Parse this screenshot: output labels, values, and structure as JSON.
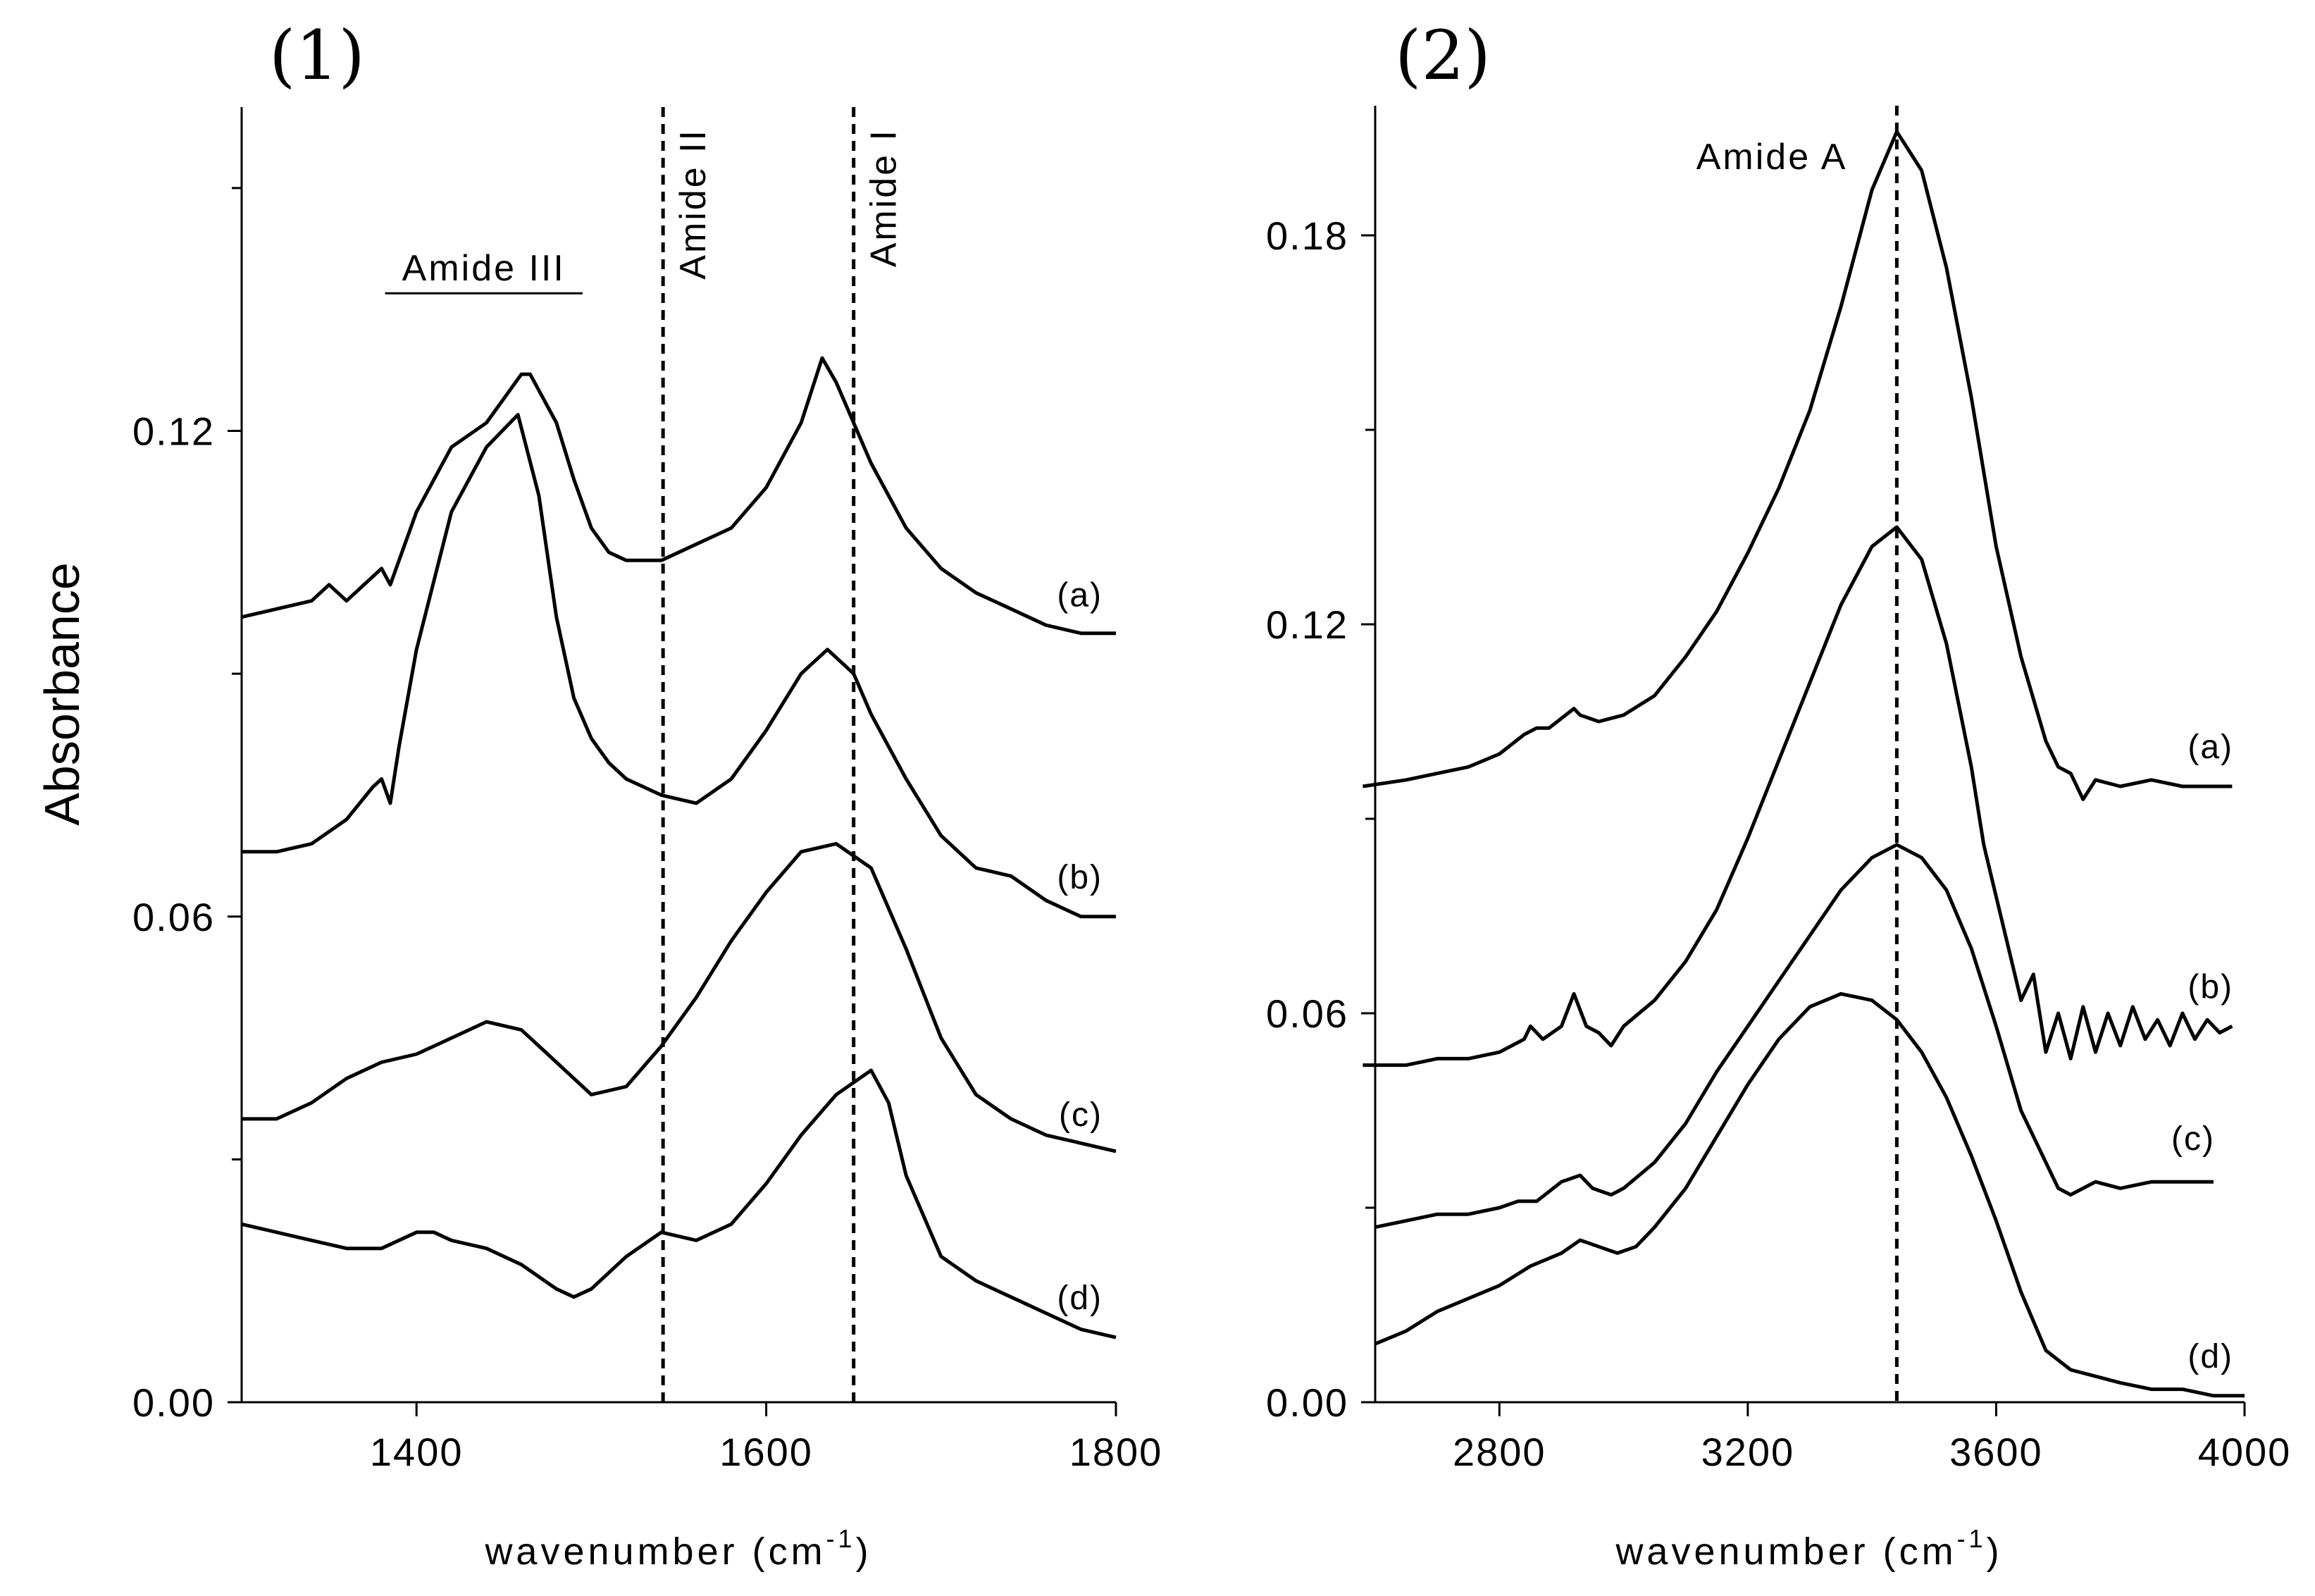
{
  "chart_data": [
    {
      "type": "line",
      "panel": "(1)",
      "ylabel": "Absorbance",
      "xlabel": "wavenumber (cm",
      "xlabel_sup": "-1",
      "xlabel_close": ")",
      "xlim": [
        1300,
        1800
      ],
      "ylim": [
        0,
        0.16
      ],
      "xticks": [
        1400,
        1600,
        1800
      ],
      "xtick_labels": [
        "1400",
        "1600",
        "1800"
      ],
      "yticks": [
        0.0,
        0.06,
        0.12
      ],
      "ytick_labels": [
        "0.00",
        "0.06",
        "0.12"
      ],
      "minor_yticks": [
        0.03,
        0.09,
        0.15
      ],
      "reference_lines": [
        {
          "x": 1541,
          "label": "Amide II"
        },
        {
          "x": 1650,
          "label": "Amide I"
        }
      ],
      "bracket_annotation": {
        "label": "Amide III",
        "x_from": 1382,
        "x_to": 1495,
        "y": 0.137
      },
      "series": [
        {
          "name": "(a)",
          "x": [
            1300,
            1320,
            1340,
            1350,
            1360,
            1380,
            1385,
            1400,
            1410,
            1420,
            1440,
            1460,
            1465,
            1480,
            1490,
            1500,
            1510,
            1520,
            1540,
            1560,
            1580,
            1600,
            1620,
            1632,
            1640,
            1660,
            1680,
            1700,
            1720,
            1740,
            1760,
            1780,
            1800
          ],
          "y": [
            0.097,
            0.098,
            0.099,
            0.101,
            0.099,
            0.103,
            0.101,
            0.11,
            0.114,
            0.118,
            0.121,
            0.127,
            0.127,
            0.121,
            0.114,
            0.108,
            0.105,
            0.104,
            0.104,
            0.106,
            0.108,
            0.113,
            0.121,
            0.129,
            0.126,
            0.116,
            0.108,
            0.103,
            0.1,
            0.098,
            0.096,
            0.095,
            0.095
          ]
        },
        {
          "name": "(b)",
          "x": [
            1300,
            1320,
            1340,
            1360,
            1375,
            1380,
            1385,
            1390,
            1400,
            1420,
            1440,
            1458,
            1470,
            1480,
            1490,
            1500,
            1510,
            1520,
            1540,
            1560,
            1580,
            1600,
            1620,
            1635,
            1650,
            1660,
            1680,
            1700,
            1720,
            1740,
            1760,
            1780,
            1800
          ],
          "y": [
            0.068,
            0.068,
            0.069,
            0.072,
            0.076,
            0.077,
            0.074,
            0.081,
            0.093,
            0.11,
            0.118,
            0.122,
            0.112,
            0.097,
            0.087,
            0.082,
            0.079,
            0.077,
            0.075,
            0.074,
            0.077,
            0.083,
            0.09,
            0.093,
            0.09,
            0.085,
            0.077,
            0.07,
            0.066,
            0.065,
            0.062,
            0.06,
            0.06
          ]
        },
        {
          "name": "(c)",
          "x": [
            1300,
            1320,
            1340,
            1360,
            1380,
            1400,
            1420,
            1440,
            1460,
            1480,
            1500,
            1520,
            1540,
            1560,
            1580,
            1600,
            1620,
            1640,
            1660,
            1680,
            1700,
            1720,
            1740,
            1760,
            1780,
            1800
          ],
          "y": [
            0.035,
            0.035,
            0.037,
            0.04,
            0.042,
            0.043,
            0.045,
            0.047,
            0.046,
            0.042,
            0.038,
            0.039,
            0.044,
            0.05,
            0.057,
            0.063,
            0.068,
            0.069,
            0.066,
            0.056,
            0.045,
            0.038,
            0.035,
            0.033,
            0.032,
            0.031
          ]
        },
        {
          "name": "(d)",
          "x": [
            1300,
            1320,
            1340,
            1360,
            1380,
            1400,
            1410,
            1420,
            1440,
            1460,
            1480,
            1490,
            1500,
            1520,
            1540,
            1560,
            1580,
            1600,
            1620,
            1640,
            1660,
            1670,
            1680,
            1700,
            1720,
            1740,
            1760,
            1780,
            1800
          ],
          "y": [
            0.022,
            0.021,
            0.02,
            0.019,
            0.019,
            0.021,
            0.021,
            0.02,
            0.019,
            0.017,
            0.014,
            0.013,
            0.014,
            0.018,
            0.021,
            0.02,
            0.022,
            0.027,
            0.033,
            0.038,
            0.041,
            0.037,
            0.028,
            0.018,
            0.015,
            0.013,
            0.011,
            0.009,
            0.008
          ]
        }
      ]
    },
    {
      "type": "line",
      "panel": "(2)",
      "xlabel": "wavenumber (cm",
      "xlabel_sup": "-1",
      "xlabel_close": ")",
      "xlim": [
        2600,
        4000
      ],
      "ylim": [
        0,
        0.2
      ],
      "xticks": [
        2800,
        3200,
        3600,
        4000
      ],
      "xtick_labels": [
        "2800",
        "3200",
        "3600",
        "4000"
      ],
      "yticks": [
        0.0,
        0.06,
        0.12,
        0.18
      ],
      "ytick_labels": [
        "0.00",
        "0.06",
        "0.12",
        "0.18"
      ],
      "minor_yticks": [
        0.03,
        0.09,
        0.15
      ],
      "reference_lines": [
        {
          "x": 3440,
          "label": "Amide A"
        }
      ],
      "series": [
        {
          "name": "(a)",
          "x": [
            2580,
            2650,
            2700,
            2750,
            2800,
            2840,
            2860,
            2880,
            2920,
            2930,
            2960,
            3000,
            3050,
            3100,
            3150,
            3200,
            3250,
            3300,
            3350,
            3400,
            3440,
            3480,
            3520,
            3560,
            3600,
            3640,
            3680,
            3700,
            3720,
            3740,
            3760,
            3800,
            3850,
            3900,
            3950,
            3980
          ],
          "y": [
            0.095,
            0.096,
            0.097,
            0.098,
            0.1,
            0.103,
            0.104,
            0.104,
            0.107,
            0.106,
            0.105,
            0.106,
            0.109,
            0.115,
            0.122,
            0.131,
            0.141,
            0.153,
            0.169,
            0.187,
            0.196,
            0.19,
            0.175,
            0.155,
            0.132,
            0.115,
            0.102,
            0.098,
            0.097,
            0.093,
            0.096,
            0.095,
            0.096,
            0.095,
            0.095,
            0.095
          ]
        },
        {
          "name": "(b)",
          "x": [
            2580,
            2650,
            2700,
            2750,
            2800,
            2840,
            2850,
            2870,
            2900,
            2920,
            2940,
            2960,
            2980,
            3000,
            3050,
            3100,
            3150,
            3200,
            3250,
            3300,
            3350,
            3400,
            3440,
            3480,
            3520,
            3560,
            3580,
            3600,
            3620,
            3640,
            3660,
            3680,
            3700,
            3720,
            3740,
            3760,
            3780,
            3800,
            3820,
            3840,
            3860,
            3880,
            3900,
            3920,
            3940,
            3960,
            3980
          ],
          "y": [
            0.052,
            0.052,
            0.053,
            0.053,
            0.054,
            0.056,
            0.058,
            0.056,
            0.058,
            0.063,
            0.058,
            0.057,
            0.055,
            0.058,
            0.062,
            0.068,
            0.076,
            0.087,
            0.099,
            0.111,
            0.123,
            0.132,
            0.135,
            0.13,
            0.117,
            0.098,
            0.086,
            0.078,
            0.07,
            0.062,
            0.066,
            0.054,
            0.06,
            0.053,
            0.061,
            0.054,
            0.06,
            0.055,
            0.061,
            0.056,
            0.059,
            0.055,
            0.06,
            0.056,
            0.059,
            0.057,
            0.058
          ]
        },
        {
          "name": "(c)",
          "x": [
            2600,
            2650,
            2700,
            2750,
            2800,
            2830,
            2860,
            2900,
            2930,
            2950,
            2980,
            3000,
            3050,
            3100,
            3150,
            3200,
            3250,
            3300,
            3350,
            3400,
            3440,
            3480,
            3520,
            3560,
            3600,
            3640,
            3680,
            3700,
            3720,
            3740,
            3760,
            3800,
            3850,
            3900,
            3950
          ],
          "y": [
            0.027,
            0.028,
            0.029,
            0.029,
            0.03,
            0.031,
            0.031,
            0.034,
            0.035,
            0.033,
            0.032,
            0.033,
            0.037,
            0.043,
            0.051,
            0.058,
            0.065,
            0.072,
            0.079,
            0.084,
            0.086,
            0.084,
            0.079,
            0.07,
            0.058,
            0.045,
            0.037,
            0.033,
            0.032,
            0.033,
            0.034,
            0.033,
            0.034,
            0.034,
            0.034
          ]
        },
        {
          "name": "(d)",
          "x": [
            2600,
            2650,
            2700,
            2750,
            2800,
            2850,
            2900,
            2930,
            2960,
            2990,
            3020,
            3050,
            3100,
            3150,
            3200,
            3250,
            3300,
            3350,
            3400,
            3440,
            3480,
            3520,
            3560,
            3600,
            3640,
            3680,
            3720,
            3760,
            3800,
            3850,
            3900,
            3950,
            4000
          ],
          "y": [
            0.009,
            0.011,
            0.014,
            0.016,
            0.018,
            0.021,
            0.023,
            0.025,
            0.024,
            0.023,
            0.024,
            0.027,
            0.033,
            0.041,
            0.049,
            0.056,
            0.061,
            0.063,
            0.062,
            0.059,
            0.054,
            0.047,
            0.038,
            0.028,
            0.017,
            0.008,
            0.005,
            0.004,
            0.003,
            0.002,
            0.002,
            0.001,
            0.001
          ]
        }
      ]
    }
  ]
}
